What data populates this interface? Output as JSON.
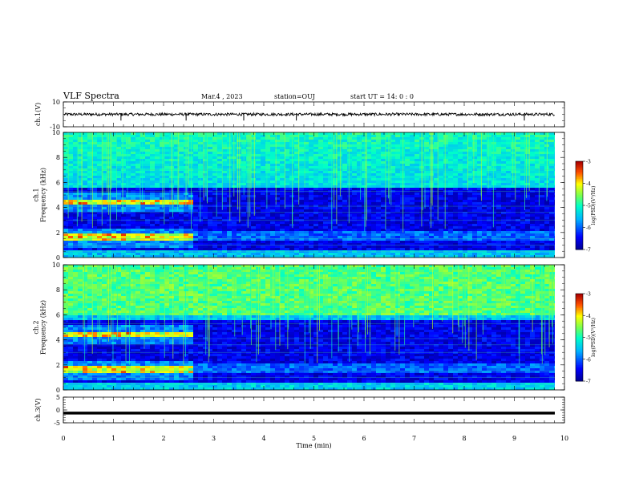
{
  "header": {
    "title": "VLF Spectra",
    "date": "Mar.4 , 2023",
    "station": "station=OUJ",
    "start": "start UT = 14: 0 : 0"
  },
  "chart_data": [
    {
      "type": "line",
      "name": "ch1-voltage",
      "ylabel": "ch.1(V)",
      "ylim": [
        -10,
        10
      ],
      "yticks": [
        "10",
        "-10"
      ],
      "xlim": [
        0,
        10
      ],
      "baseline": 0,
      "spike_times": [
        1.15,
        2.45,
        3.6,
        4.65,
        9.2
      ]
    },
    {
      "type": "heatmap",
      "name": "ch1-spectrogram",
      "ylabel": "ch.1\nFrequency (kHz)",
      "ylim": [
        0,
        10
      ],
      "yticks": [
        "0",
        "2",
        "4",
        "6",
        "8",
        "10"
      ],
      "xlim": [
        0,
        10
      ],
      "regime_change_min": 2.5,
      "active_bands_khz_before_change": [
        [
          1.3,
          2.0
        ],
        [
          4.3,
          4.7
        ]
      ],
      "colorbar": {
        "label": "log(PSD)(V²/Hz)",
        "min": -7,
        "max": -3,
        "ticks": [
          "-3",
          "-4",
          "-5",
          "-6",
          "-7"
        ]
      }
    },
    {
      "type": "heatmap",
      "name": "ch2-spectrogram",
      "ylabel": "ch.2\nFrequency (kHz)",
      "ylim": [
        0,
        10
      ],
      "yticks": [
        "0",
        "2",
        "4",
        "6",
        "8",
        "10"
      ],
      "xlim": [
        0,
        10
      ],
      "regime_change_min": 2.5,
      "active_bands_khz_before_change": [
        [
          1.3,
          2.0
        ],
        [
          4.2,
          4.7
        ]
      ],
      "colorbar": {
        "label": "log(PSD)(V²/Hz)",
        "min": -7,
        "max": -3,
        "ticks": [
          "-3",
          "-4",
          "-5",
          "-6",
          "-7"
        ]
      }
    },
    {
      "type": "line",
      "name": "ch3-voltage",
      "ylabel": "ch.3(V)",
      "ylim": [
        -5,
        5
      ],
      "yticks": [
        "5",
        "0",
        "-5"
      ],
      "xlim": [
        0,
        10
      ],
      "baseline": -1.2
    }
  ],
  "xaxis": {
    "label": "Time (min)",
    "ticks": [
      "0",
      "1",
      "2",
      "3",
      "4",
      "5",
      "6",
      "7",
      "8",
      "9",
      "10"
    ]
  }
}
